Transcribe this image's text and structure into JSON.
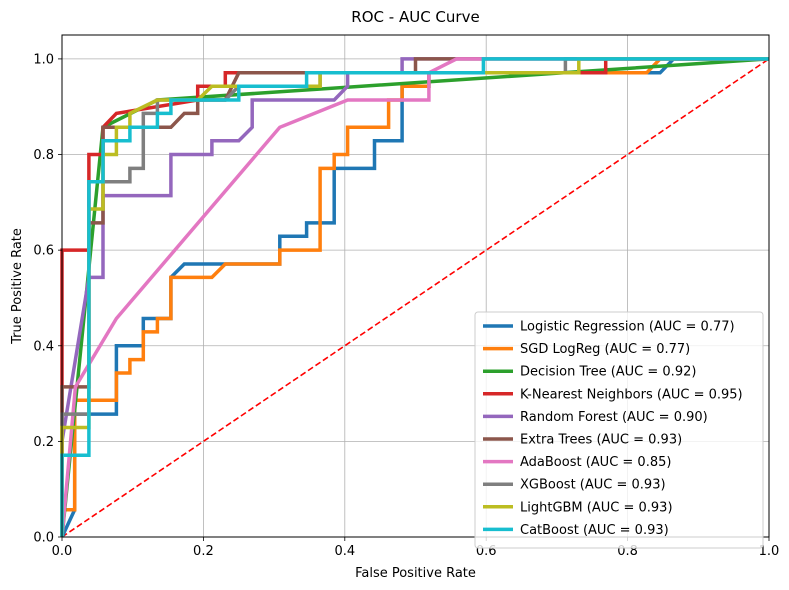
{
  "chart_data": {
    "type": "line",
    "title": "ROC - AUC Curve",
    "xlabel": "False Positive Rate",
    "ylabel": "True Positive Rate",
    "xlim": [
      0,
      1
    ],
    "ylim": [
      0,
      1.05
    ],
    "xticks": [
      "0.0",
      "0.2",
      "0.4",
      "0.6",
      "0.8",
      "1.0"
    ],
    "yticks": [
      "0.0",
      "0.2",
      "0.4",
      "0.6",
      "0.8",
      "1.0"
    ],
    "grid": true,
    "legend_position": "lower-right",
    "diagonal": {
      "points": [
        [
          0,
          0
        ],
        [
          1,
          1
        ]
      ],
      "color": "#ff0000",
      "style": "dashed"
    },
    "series": [
      {
        "name": "Logistic Regression (AUC = 0.77)",
        "color": "#1f77b4",
        "points": [
          [
            0,
            0
          ],
          [
            0.018,
            0.057
          ],
          [
            0.018,
            0.257
          ],
          [
            0.077,
            0.257
          ],
          [
            0.077,
            0.4
          ],
          [
            0.115,
            0.4
          ],
          [
            0.115,
            0.457
          ],
          [
            0.154,
            0.457
          ],
          [
            0.154,
            0.543
          ],
          [
            0.173,
            0.571
          ],
          [
            0.308,
            0.571
          ],
          [
            0.308,
            0.629
          ],
          [
            0.346,
            0.629
          ],
          [
            0.346,
            0.657
          ],
          [
            0.385,
            0.657
          ],
          [
            0.385,
            0.771
          ],
          [
            0.442,
            0.771
          ],
          [
            0.442,
            0.829
          ],
          [
            0.481,
            0.829
          ],
          [
            0.481,
            0.943
          ],
          [
            0.519,
            0.943
          ],
          [
            0.519,
            0.971
          ],
          [
            0.846,
            0.971
          ],
          [
            0.865,
            1.0
          ],
          [
            1.0,
            1.0
          ]
        ]
      },
      {
        "name": "SGD LogReg (AUC = 0.77)",
        "color": "#ff7f0e",
        "points": [
          [
            0,
            0
          ],
          [
            0.0,
            0.057
          ],
          [
            0.018,
            0.057
          ],
          [
            0.018,
            0.286
          ],
          [
            0.077,
            0.286
          ],
          [
            0.077,
            0.343
          ],
          [
            0.096,
            0.343
          ],
          [
            0.096,
            0.371
          ],
          [
            0.115,
            0.371
          ],
          [
            0.115,
            0.429
          ],
          [
            0.135,
            0.429
          ],
          [
            0.135,
            0.457
          ],
          [
            0.154,
            0.457
          ],
          [
            0.154,
            0.543
          ],
          [
            0.212,
            0.543
          ],
          [
            0.231,
            0.571
          ],
          [
            0.308,
            0.571
          ],
          [
            0.308,
            0.6
          ],
          [
            0.365,
            0.6
          ],
          [
            0.365,
            0.771
          ],
          [
            0.385,
            0.771
          ],
          [
            0.385,
            0.8
          ],
          [
            0.404,
            0.8
          ],
          [
            0.404,
            0.857
          ],
          [
            0.462,
            0.857
          ],
          [
            0.462,
            0.914
          ],
          [
            0.481,
            0.914
          ],
          [
            0.481,
            0.943
          ],
          [
            0.519,
            0.943
          ],
          [
            0.519,
            0.971
          ],
          [
            0.827,
            0.971
          ],
          [
            0.846,
            1.0
          ],
          [
            1.0,
            1.0
          ]
        ]
      },
      {
        "name": "Decision Tree (AUC = 0.92)",
        "color": "#2ca02c",
        "points": [
          [
            0,
            0
          ],
          [
            0.058,
            0.857
          ],
          [
            0.135,
            0.914
          ],
          [
            1.0,
            1.0
          ]
        ]
      },
      {
        "name": "K-Nearest Neighbors (AUC = 0.95)",
        "color": "#d62728",
        "points": [
          [
            0,
            0
          ],
          [
            0.0,
            0.6
          ],
          [
            0.038,
            0.6
          ],
          [
            0.038,
            0.8
          ],
          [
            0.058,
            0.8
          ],
          [
            0.058,
            0.857
          ],
          [
            0.077,
            0.886
          ],
          [
            0.192,
            0.914
          ],
          [
            0.192,
            0.943
          ],
          [
            0.231,
            0.943
          ],
          [
            0.231,
            0.971
          ],
          [
            0.404,
            0.971
          ],
          [
            0.404,
            0.971
          ],
          [
            0.577,
            0.971
          ],
          [
            0.769,
            0.971
          ],
          [
            0.769,
            1.0
          ],
          [
            1.0,
            1.0
          ]
        ]
      },
      {
        "name": "Random Forest (AUC = 0.90)",
        "color": "#9467bd",
        "points": [
          [
            0,
            0
          ],
          [
            0.0,
            0.2
          ],
          [
            0.038,
            0.543
          ],
          [
            0.058,
            0.543
          ],
          [
            0.058,
            0.714
          ],
          [
            0.154,
            0.714
          ],
          [
            0.154,
            0.8
          ],
          [
            0.212,
            0.8
          ],
          [
            0.212,
            0.829
          ],
          [
            0.25,
            0.829
          ],
          [
            0.269,
            0.857
          ],
          [
            0.269,
            0.914
          ],
          [
            0.385,
            0.914
          ],
          [
            0.404,
            0.943
          ],
          [
            0.404,
            0.971
          ],
          [
            0.481,
            0.971
          ],
          [
            0.481,
            1.0
          ],
          [
            1.0,
            1.0
          ]
        ]
      },
      {
        "name": "Extra Trees (AUC = 0.93)",
        "color": "#8c564b",
        "points": [
          [
            0,
            0
          ],
          [
            0.0,
            0.314
          ],
          [
            0.038,
            0.314
          ],
          [
            0.038,
            0.657
          ],
          [
            0.058,
            0.657
          ],
          [
            0.058,
            0.857
          ],
          [
            0.154,
            0.857
          ],
          [
            0.173,
            0.886
          ],
          [
            0.192,
            0.886
          ],
          [
            0.192,
            0.914
          ],
          [
            0.231,
            0.914
          ],
          [
            0.25,
            0.971
          ],
          [
            0.5,
            0.971
          ],
          [
            0.5,
            1.0
          ],
          [
            1.0,
            1.0
          ]
        ]
      },
      {
        "name": "AdaBoost (AUC = 0.85)",
        "color": "#e377c2",
        "points": [
          [
            0,
            0
          ],
          [
            0.019,
            0.314
          ],
          [
            0.077,
            0.457
          ],
          [
            0.308,
            0.857
          ],
          [
            0.404,
            0.914
          ],
          [
            0.519,
            0.914
          ],
          [
            0.519,
            0.971
          ],
          [
            0.558,
            1.0
          ],
          [
            1.0,
            1.0
          ]
        ]
      },
      {
        "name": "XGBoost (AUC = 0.93)",
        "color": "#7f7f7f",
        "points": [
          [
            0,
            0
          ],
          [
            0.0,
            0.257
          ],
          [
            0.038,
            0.257
          ],
          [
            0.038,
            0.743
          ],
          [
            0.096,
            0.743
          ],
          [
            0.096,
            0.771
          ],
          [
            0.115,
            0.771
          ],
          [
            0.115,
            0.886
          ],
          [
            0.135,
            0.886
          ],
          [
            0.135,
            0.914
          ],
          [
            0.231,
            0.914
          ],
          [
            0.25,
            0.943
          ],
          [
            0.365,
            0.943
          ],
          [
            0.365,
            0.971
          ],
          [
            0.712,
            0.971
          ],
          [
            0.712,
            1.0
          ],
          [
            1.0,
            1.0
          ]
        ]
      },
      {
        "name": "LightGBM (AUC = 0.93)",
        "color": "#bcbd22",
        "points": [
          [
            0,
            0
          ],
          [
            0.0,
            0.229
          ],
          [
            0.038,
            0.229
          ],
          [
            0.038,
            0.686
          ],
          [
            0.058,
            0.686
          ],
          [
            0.058,
            0.8
          ],
          [
            0.077,
            0.8
          ],
          [
            0.077,
            0.857
          ],
          [
            0.096,
            0.857
          ],
          [
            0.096,
            0.886
          ],
          [
            0.135,
            0.914
          ],
          [
            0.192,
            0.914
          ],
          [
            0.212,
            0.943
          ],
          [
            0.365,
            0.943
          ],
          [
            0.365,
            0.971
          ],
          [
            0.731,
            0.971
          ],
          [
            0.731,
            1.0
          ],
          [
            1.0,
            1.0
          ]
        ]
      },
      {
        "name": "CatBoost (AUC = 0.93)",
        "color": "#17becf",
        "points": [
          [
            0,
            0
          ],
          [
            0.0,
            0.171
          ],
          [
            0.038,
            0.171
          ],
          [
            0.038,
            0.743
          ],
          [
            0.058,
            0.743
          ],
          [
            0.058,
            0.829
          ],
          [
            0.096,
            0.829
          ],
          [
            0.096,
            0.857
          ],
          [
            0.135,
            0.857
          ],
          [
            0.135,
            0.886
          ],
          [
            0.154,
            0.886
          ],
          [
            0.154,
            0.914
          ],
          [
            0.25,
            0.914
          ],
          [
            0.25,
            0.943
          ],
          [
            0.346,
            0.943
          ],
          [
            0.346,
            0.971
          ],
          [
            0.596,
            0.971
          ],
          [
            0.596,
            1.0
          ],
          [
            1.0,
            1.0
          ]
        ]
      }
    ]
  }
}
